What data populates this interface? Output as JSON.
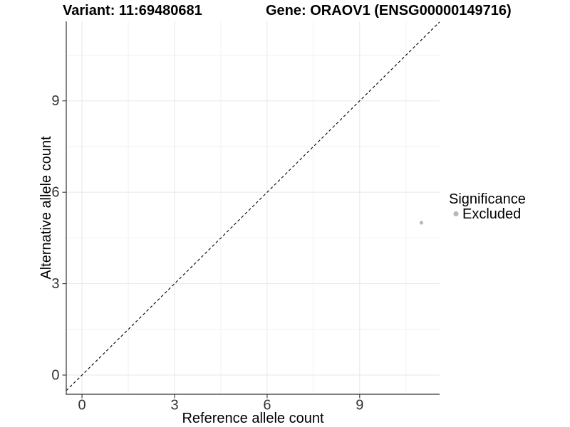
{
  "chart_data": {
    "type": "scatter",
    "title_left": "Variant: 11:69480681",
    "title_right": "Gene: ORAOV1 (ENSG00000149716)",
    "xlabel": "Reference allele count",
    "ylabel": "Alternative allele count",
    "xlim": [
      -0.51,
      11.59
    ],
    "ylim": [
      -0.63,
      11.61
    ],
    "x_major_ticks": [
      0,
      3,
      6,
      9
    ],
    "y_major_ticks": [
      0,
      3,
      6,
      9
    ],
    "x_minor_ticks": [
      1.5,
      4.5,
      7.5,
      10.5
    ],
    "y_minor_ticks": [
      1.5,
      4.5,
      7.5,
      10.5
    ],
    "grid": "major and minor gridlines on, white panel",
    "identity_line": {
      "slope": 1,
      "intercept": 0,
      "style": "dashed",
      "color": "#000000"
    },
    "series": [
      {
        "name": "Excluded",
        "color": "#b8b8b8",
        "points": [
          {
            "x": 11,
            "y": 5
          }
        ]
      }
    ],
    "legend": {
      "position": "right",
      "title": "Significance",
      "items": [
        {
          "label": "Excluded",
          "color": "#b8b8b8"
        }
      ]
    },
    "colors": {
      "axis": "#333333",
      "grid_major": "#e7e7e7",
      "grid_minor": "#f2f2f2",
      "tick_label": "#333333",
      "point": "#b8b8b8",
      "background": "#ffffff"
    }
  }
}
